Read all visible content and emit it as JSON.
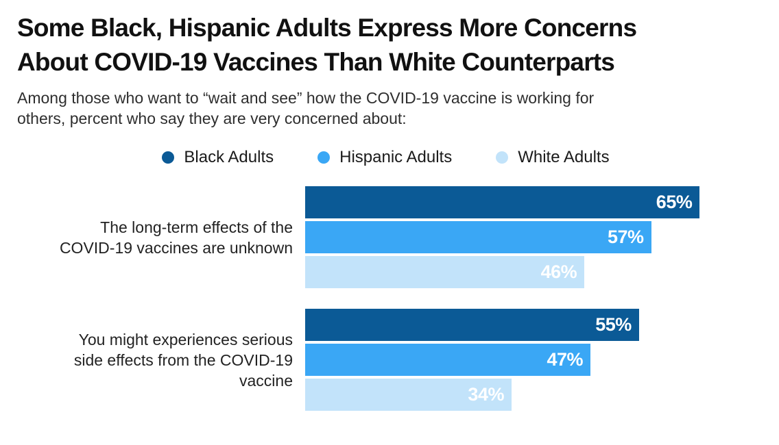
{
  "header": {
    "title_lines": [
      "Some Black, Hispanic Adults Express More Concerns",
      "About COVID-19 Vaccines Than White Counterparts"
    ],
    "subtitle_lines": [
      "Among those who want to “wait and see” how the COVID-19 vaccine is working for",
      "others, percent who say they are very concerned about:"
    ]
  },
  "chart_data": {
    "type": "bar",
    "orientation": "horizontal",
    "title": "Some Black, Hispanic Adults Express More Concerns About COVID-19 Vaccines Than White Counterparts",
    "subtitle": "Among those who want to “wait and see” how the COVID-19 vaccine is working for others, percent who say they are very concerned about:",
    "categories": [
      "The long-term effects of the COVID-19 vaccines are unknown",
      "You might experiences serious side effects from the COVID-19 vaccine"
    ],
    "category_lines": [
      [
        "The long-term effects of the",
        "COVID-19 vaccines are unknown"
      ],
      [
        "You might experiences serious",
        "side effects from the COVID-19",
        "vaccine"
      ]
    ],
    "series": [
      {
        "name": "Black Adults",
        "color": "#0B5A96",
        "values": [
          65,
          55
        ]
      },
      {
        "name": "Hispanic Adults",
        "color": "#3AA7F5",
        "values": [
          57,
          47
        ]
      },
      {
        "name": "White Adults",
        "color": "#C2E3FA",
        "values": [
          46,
          34
        ]
      }
    ],
    "value_suffix": "%",
    "value_label_color": "#FFFFFF",
    "xlim": [
      0,
      74
    ],
    "legend_position": "top-center",
    "grid": false,
    "background": "#FFFFFF"
  }
}
